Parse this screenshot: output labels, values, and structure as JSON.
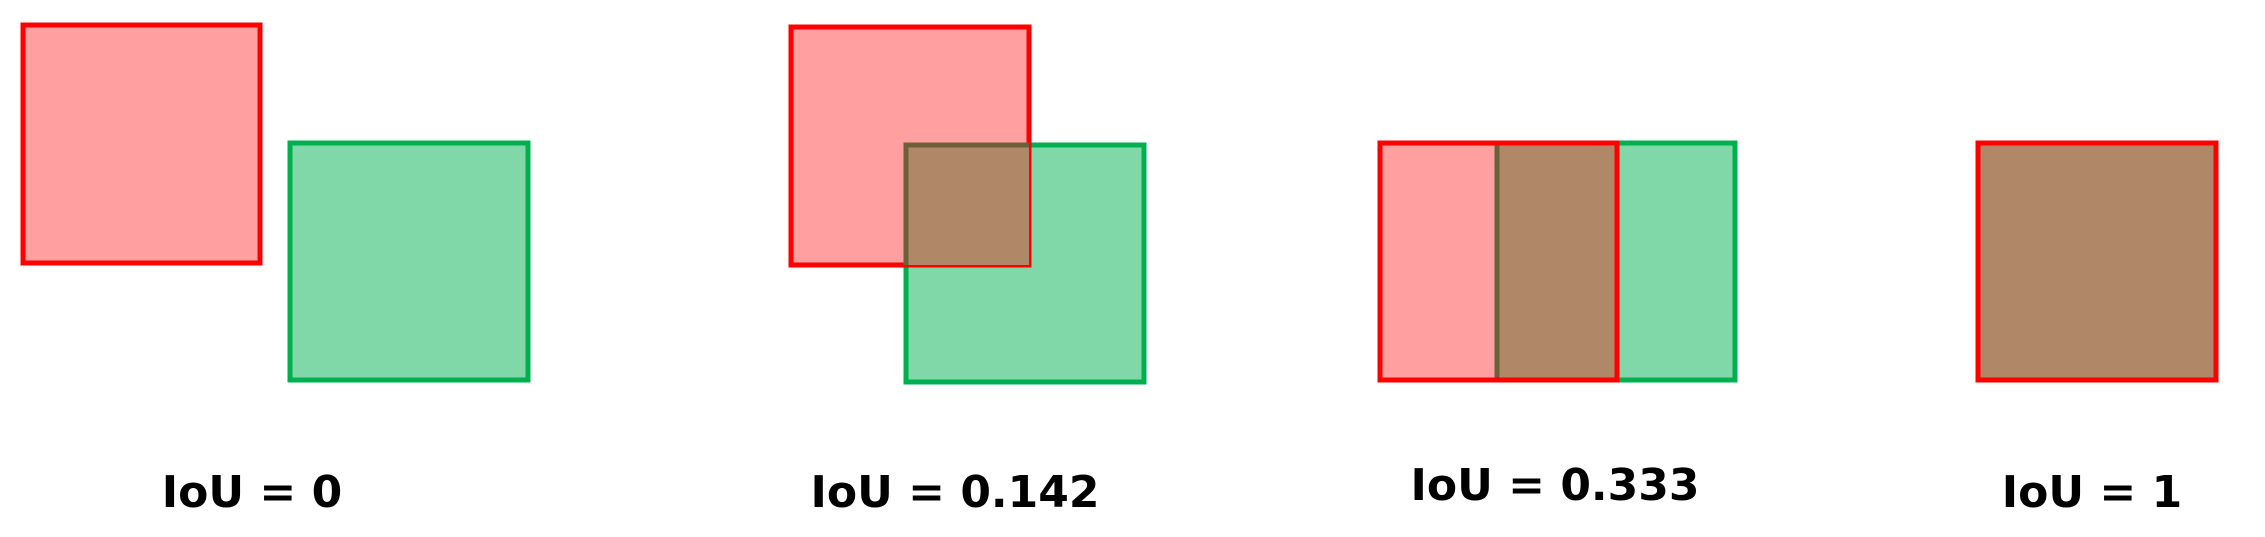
{
  "colors": {
    "pred_fill": "#ff9f9f",
    "pred_stroke": "#ff0000",
    "gt_fill": "#80d8a8",
    "gt_stroke": "#00b050",
    "overlap_fill": "#b08868",
    "overlap_stroke": "#6b6038"
  },
  "examples": [
    {
      "label": "IoU = 0"
    },
    {
      "label": "IoU = 0.142"
    },
    {
      "label": "IoU = 0.333"
    },
    {
      "label": "IoU = 1"
    }
  ]
}
